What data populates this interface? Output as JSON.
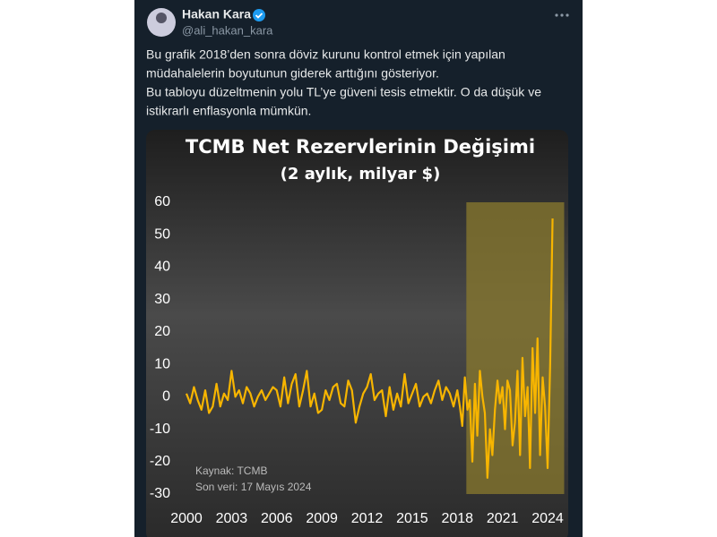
{
  "tweet": {
    "author_name": "Hakan Kara",
    "handle": "@ali_hakan_kara",
    "text_lines": [
      "Bu grafik 2018’den sonra döviz kurunu kontrol etmek için yapılan",
      "müdahalelerin boyutunun giderek arttığını gösteriyor.",
      "Bu tabloyu düzeltmenin yolu TL’ye güveni tesis etmektir. O da düşük ve",
      "istikrarlı enflasyonla mümkün."
    ]
  },
  "chart_data": {
    "type": "line",
    "title": "TCMB Net Rezervlerinin Değişimi",
    "subtitle": "(2 aylık, milyar $)",
    "annotations": [
      "Kaynak: TCMB",
      "Son veri: 17 Mayıs 2024"
    ],
    "x": [
      2000,
      2000.25,
      2000.5,
      2000.75,
      2001,
      2001.25,
      2001.5,
      2001.75,
      2002,
      2002.25,
      2002.5,
      2002.75,
      2003,
      2003.25,
      2003.5,
      2003.75,
      2004,
      2004.25,
      2004.5,
      2004.75,
      2005,
      2005.25,
      2005.5,
      2005.75,
      2006,
      2006.25,
      2006.5,
      2006.75,
      2007,
      2007.25,
      2007.5,
      2007.75,
      2008,
      2008.25,
      2008.5,
      2008.75,
      2009,
      2009.25,
      2009.5,
      2009.75,
      2010,
      2010.25,
      2010.5,
      2010.75,
      2011,
      2011.25,
      2011.5,
      2011.75,
      2012,
      2012.25,
      2012.5,
      2012.75,
      2013,
      2013.25,
      2013.5,
      2013.75,
      2014,
      2014.25,
      2014.5,
      2014.75,
      2015,
      2015.25,
      2015.5,
      2015.75,
      2016,
      2016.25,
      2016.5,
      2016.75,
      2017,
      2017.25,
      2017.5,
      2017.75,
      2018,
      2018.17,
      2018.33,
      2018.5,
      2018.67,
      2018.83,
      2019,
      2019.17,
      2019.33,
      2019.5,
      2019.67,
      2019.83,
      2020,
      2020.17,
      2020.33,
      2020.5,
      2020.67,
      2020.83,
      2021,
      2021.17,
      2021.33,
      2021.5,
      2021.67,
      2021.83,
      2022,
      2022.17,
      2022.33,
      2022.5,
      2022.67,
      2022.83,
      2023,
      2023.17,
      2023.33,
      2023.5,
      2023.67,
      2023.83,
      2024,
      2024.17,
      2024.33
    ],
    "series": [
      {
        "color": "#f7b500",
        "values": [
          1,
          -2,
          3,
          -1,
          -4,
          2,
          -5,
          -3,
          4,
          -3,
          1,
          -1,
          8,
          0,
          2,
          -2,
          3,
          1,
          -3,
          0,
          2,
          -1,
          1,
          3,
          2,
          -3,
          6,
          -2,
          4,
          7,
          -3,
          2,
          8,
          -3,
          1,
          -5,
          -4,
          2,
          -1,
          3,
          4,
          -2,
          -3,
          5,
          2,
          -8,
          -3,
          1,
          3,
          7,
          -1,
          1,
          2,
          -6,
          3,
          -4,
          1,
          -3,
          7,
          -2,
          1,
          4,
          -3,
          0,
          1,
          -2,
          2,
          5,
          -1,
          3,
          1,
          -3,
          2,
          -3,
          -9,
          6,
          -4,
          -1,
          -20,
          4,
          -12,
          8,
          0,
          -5,
          -25,
          -10,
          -18,
          -4,
          5,
          -2,
          3,
          -10,
          5,
          2,
          -15,
          -8,
          8,
          -18,
          12,
          -6,
          3,
          -22,
          15,
          -5,
          18,
          -18,
          6,
          -3,
          -22,
          10,
          55
        ]
      }
    ],
    "xlim": [
      2000,
      2024
    ],
    "ylim": [
      -30,
      60
    ],
    "xticks": [
      2000,
      2003,
      2006,
      2009,
      2012,
      2015,
      2018,
      2021,
      2024
    ],
    "yticks": [
      -30,
      -20,
      -10,
      0,
      10,
      20,
      30,
      40,
      50,
      60
    ],
    "highlight_xlim": [
      2018.6,
      2025.1
    ],
    "highlight_color": "#8a7a2e"
  }
}
